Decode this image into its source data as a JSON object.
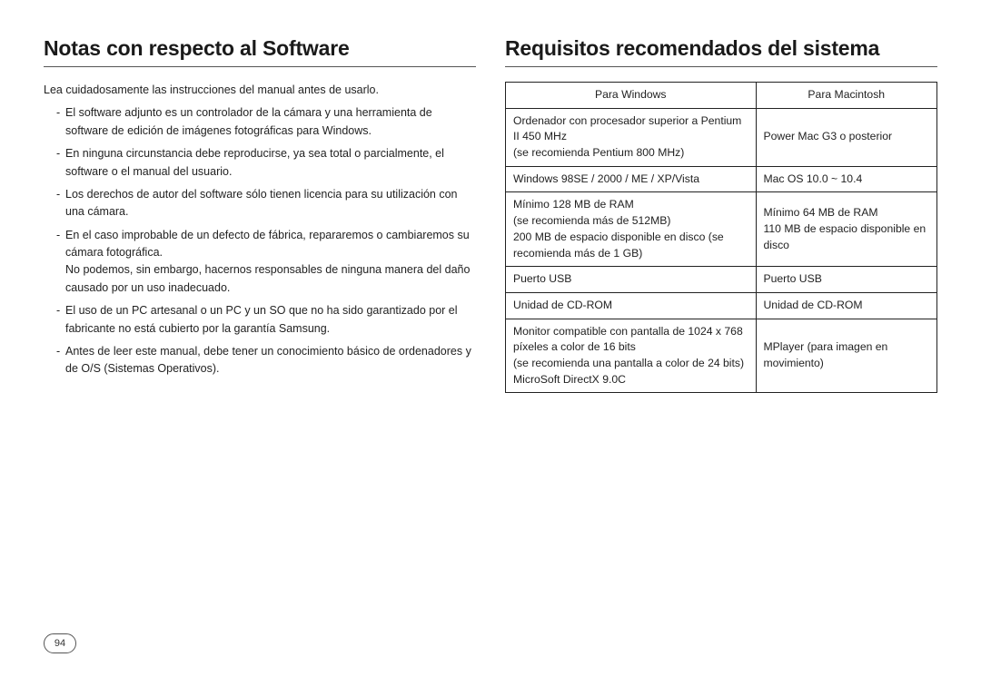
{
  "left": {
    "heading": "Notas con respecto al Software",
    "intro": "Lea cuidadosamente las instrucciones del manual antes de usarlo.",
    "bullets": [
      "El software adjunto es un controlador de la cámara y una herramienta de software de edición de imágenes fotográficas para Windows.",
      "En ninguna circunstancia debe reproducirse, ya sea total o parcialmente, el software o el manual del usuario.",
      "Los derechos de autor del software sólo tienen licencia para su utilización con una cámara.",
      "En el caso improbable de un defecto de fábrica, repararemos o cambiaremos su cámara fotográfica.\nNo podemos, sin embargo, hacernos responsables de ninguna manera del daño causado por un uso inadecuado.",
      "El uso de un PC artesanal o un PC y un SO que no ha sido garantizado por el fabricante no está cubierto por la garantía Samsung.",
      "Antes de leer este manual, debe tener un conocimiento básico de ordenadores y de O/S (Sistemas Operativos)."
    ]
  },
  "right": {
    "heading": "Requisitos recomendados del sistema",
    "table": {
      "header": {
        "win": "Para Windows",
        "mac": "Para Macintosh"
      },
      "rows": [
        {
          "win": "Ordenador con procesador superior a Pentium II 450 MHz\n(se recomienda Pentium 800 MHz)",
          "mac": "Power Mac G3 o posterior"
        },
        {
          "win": "Windows 98SE / 2000 / ME / XP/Vista",
          "mac": "Mac OS 10.0 ~ 10.4"
        },
        {
          "win": "Mínimo 128 MB de RAM\n(se recomienda más de 512MB)\n200 MB de espacio disponible en disco (se recomienda más de 1 GB)",
          "mac": "Mínimo 64 MB de RAM\n110 MB de espacio disponible en disco"
        },
        {
          "win": "Puerto USB",
          "mac": "Puerto USB"
        },
        {
          "win": "Unidad de CD-ROM",
          "mac": "Unidad de CD-ROM"
        },
        {
          "win": "Monitor compatible con pantalla de 1024 x 768 píxeles a color de 16 bits\n(se recomienda una pantalla a color de 24 bits)\nMicroSoft DirectX 9.0C",
          "mac": "MPlayer (para imagen en movimiento)"
        }
      ]
    }
  },
  "page_number": "94",
  "style": {
    "heading_fontsize": 23,
    "body_fontsize": 12.5,
    "table_fontsize": 12.2,
    "border_color": "#222222",
    "heading_underline_color": "#555555",
    "text_color": "#222222",
    "background_color": "#ffffff",
    "column_widths": {
      "win_pct": 58,
      "mac_pct": 42
    }
  }
}
